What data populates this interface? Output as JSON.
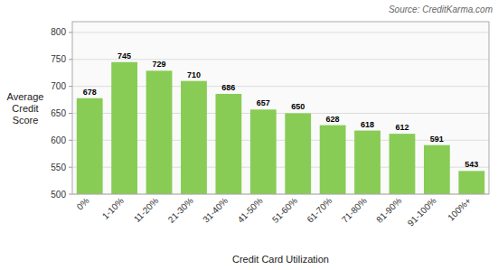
{
  "chart_data": {
    "type": "bar",
    "categories": [
      "0%",
      "1-10%",
      "11-20%",
      "21-30%",
      "31-40%",
      "41-50%",
      "51-60%",
      "61-70%",
      "71-80%",
      "81-90%",
      "91-100%",
      "100%+"
    ],
    "values": [
      678,
      745,
      729,
      710,
      686,
      657,
      650,
      628,
      618,
      612,
      591,
      543
    ],
    "color": "#88cc55",
    "x_label": "Credit Card Utilization",
    "y_label": "Average\nCredit\nScore",
    "annotations": [
      "Source: CreditKarma.com"
    ],
    "ylim": [
      500,
      820
    ],
    "yticks": [
      500,
      550,
      600,
      650,
      700,
      750,
      800
    ],
    "grid": true,
    "data_labels": true
  }
}
